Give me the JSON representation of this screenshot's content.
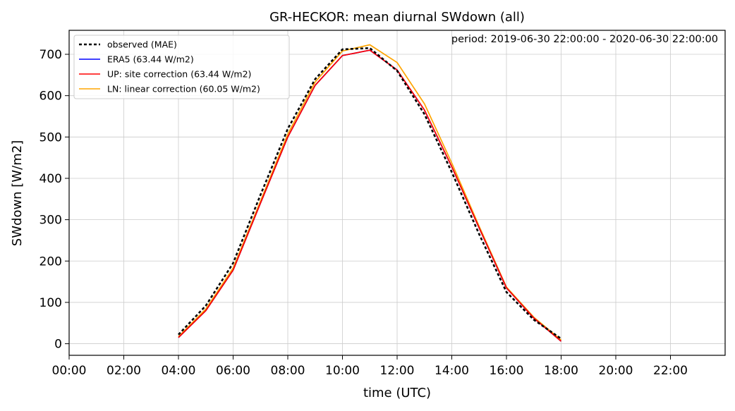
{
  "chart_data": {
    "type": "line",
    "title": "GR-HECKOR: mean diurnal SWdown (all)",
    "annotation": "period: 2019-06-30 22:00:00 - 2020-06-30 22:00:00",
    "xlabel": "time (UTC)",
    "ylabel": "SWdown [W/m2]",
    "xlim": [
      0,
      24
    ],
    "ylim": [
      -28,
      758
    ],
    "x_ticks": [
      0,
      2,
      4,
      6,
      8,
      10,
      12,
      14,
      16,
      18,
      20,
      22
    ],
    "x_tick_labels": [
      "00:00",
      "02:00",
      "04:00",
      "06:00",
      "08:00",
      "10:00",
      "12:00",
      "14:00",
      "16:00",
      "18:00",
      "20:00",
      "22:00"
    ],
    "y_ticks": [
      0,
      100,
      200,
      300,
      400,
      500,
      600,
      700
    ],
    "y_tick_labels": [
      "0",
      "100",
      "200",
      "300",
      "400",
      "500",
      "600",
      "700"
    ],
    "grid": true,
    "legend_position": "top-left",
    "x": [
      4,
      5,
      6,
      7,
      8,
      9,
      10,
      11,
      12,
      13,
      14,
      15,
      16,
      17,
      18
    ],
    "series": [
      {
        "name": "observed (MAE)",
        "color": "#000000",
        "style": "dotted",
        "values": [
          22,
          92,
          195,
          360,
          520,
          640,
          712,
          715,
          660,
          555,
          415,
          265,
          125,
          58,
          12
        ]
      },
      {
        "name": "ERA5 (63.44 W/m2)",
        "color": "#0000ff",
        "style": "solid",
        "values": [
          15,
          80,
          178,
          340,
          500,
          625,
          697,
          710,
          662,
          565,
          428,
          280,
          135,
          62,
          6
        ]
      },
      {
        "name": "UP: site correction (63.44 W/m2)",
        "color": "#ff0000",
        "style": "solid",
        "values": [
          15,
          80,
          178,
          340,
          500,
          625,
          697,
          710,
          662,
          565,
          428,
          280,
          135,
          62,
          6
        ]
      },
      {
        "name": "LN: linear correction (60.05 W/m2)",
        "color": "#ffa500",
        "style": "solid",
        "values": [
          17,
          84,
          183,
          345,
          507,
          633,
          708,
          723,
          680,
          580,
          437,
          284,
          137,
          64,
          9
        ]
      }
    ]
  }
}
